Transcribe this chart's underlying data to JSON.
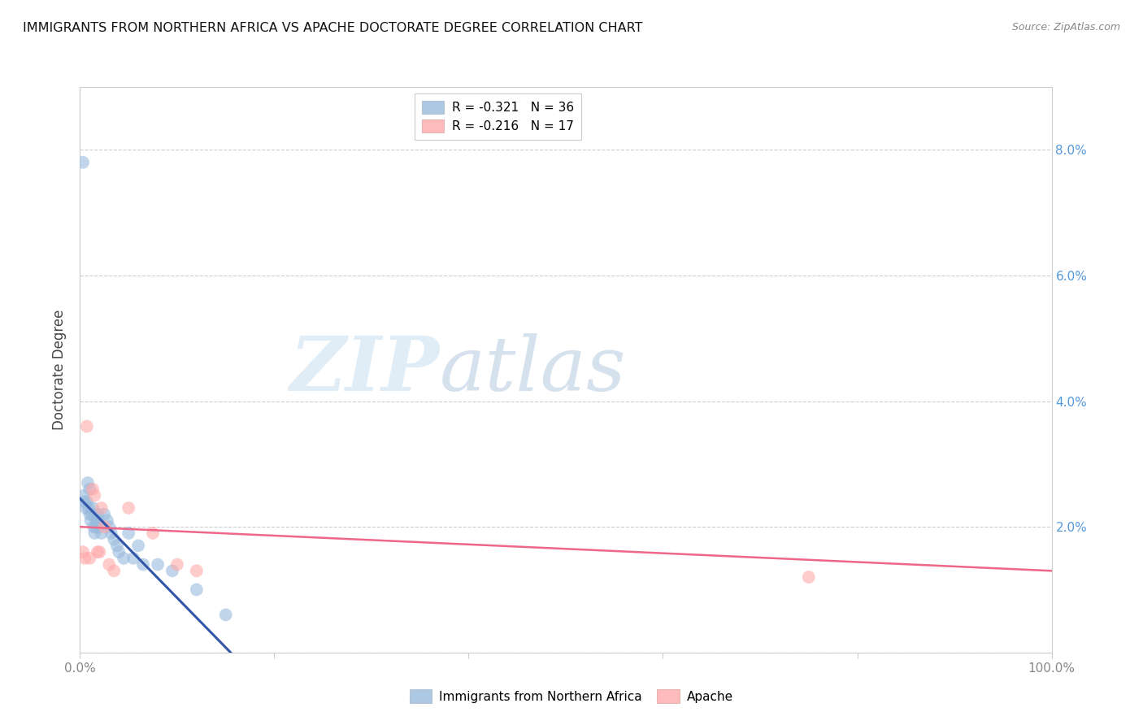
{
  "title": "IMMIGRANTS FROM NORTHERN AFRICA VS APACHE DOCTORATE DEGREE CORRELATION CHART",
  "source": "Source: ZipAtlas.com",
  "ylabel": "Doctorate Degree",
  "xlim": [
    0,
    1.0
  ],
  "ylim": [
    0,
    0.09
  ],
  "x_ticks": [
    0.0,
    0.2,
    0.4,
    0.6,
    0.8,
    1.0
  ],
  "x_tick_labels": [
    "0.0%",
    "",
    "",
    "",
    "",
    "100.0%"
  ],
  "y_ticks": [
    0.0,
    0.02,
    0.04,
    0.06,
    0.08
  ],
  "y_tick_labels_right": [
    "",
    "2.0%",
    "4.0%",
    "6.0%",
    "8.0%"
  ],
  "legend1_label": "R = -0.321   N = 36",
  "legend2_label": "R = -0.216   N = 17",
  "blue_color": "#99BBDD",
  "pink_color": "#FFAAAA",
  "blue_line_color": "#3355AA",
  "pink_line_color": "#EE6688",
  "watermark_zip": "ZIP",
  "watermark_atlas": "atlas",
  "legend_bottom_label1": "Immigrants from Northern Africa",
  "legend_bottom_label2": "Apache",
  "blue_scatter_x": [
    0.003,
    0.004,
    0.005,
    0.006,
    0.007,
    0.008,
    0.009,
    0.01,
    0.01,
    0.011,
    0.012,
    0.013,
    0.014,
    0.015,
    0.016,
    0.017,
    0.018,
    0.019,
    0.02,
    0.022,
    0.025,
    0.028,
    0.03,
    0.032,
    0.035,
    0.038,
    0.04,
    0.045,
    0.05,
    0.055,
    0.06,
    0.065,
    0.08,
    0.095,
    0.12,
    0.15
  ],
  "blue_scatter_y": [
    0.078,
    0.025,
    0.024,
    0.023,
    0.024,
    0.027,
    0.023,
    0.026,
    0.022,
    0.021,
    0.022,
    0.023,
    0.02,
    0.019,
    0.02,
    0.021,
    0.022,
    0.021,
    0.02,
    0.019,
    0.022,
    0.021,
    0.02,
    0.019,
    0.018,
    0.017,
    0.016,
    0.015,
    0.019,
    0.015,
    0.017,
    0.014,
    0.014,
    0.013,
    0.01,
    0.006
  ],
  "pink_scatter_x": [
    0.003,
    0.005,
    0.007,
    0.01,
    0.013,
    0.015,
    0.018,
    0.02,
    0.022,
    0.025,
    0.03,
    0.035,
    0.05,
    0.075,
    0.1,
    0.12,
    0.75
  ],
  "pink_scatter_y": [
    0.016,
    0.015,
    0.036,
    0.015,
    0.026,
    0.025,
    0.016,
    0.016,
    0.023,
    0.02,
    0.014,
    0.013,
    0.023,
    0.019,
    0.014,
    0.013,
    0.012
  ],
  "blue_trend_x": [
    0.0,
    0.155
  ],
  "blue_trend_y": [
    0.0245,
    0.0
  ],
  "pink_trend_x": [
    0.0,
    1.0
  ],
  "pink_trend_y": [
    0.02,
    0.013
  ]
}
